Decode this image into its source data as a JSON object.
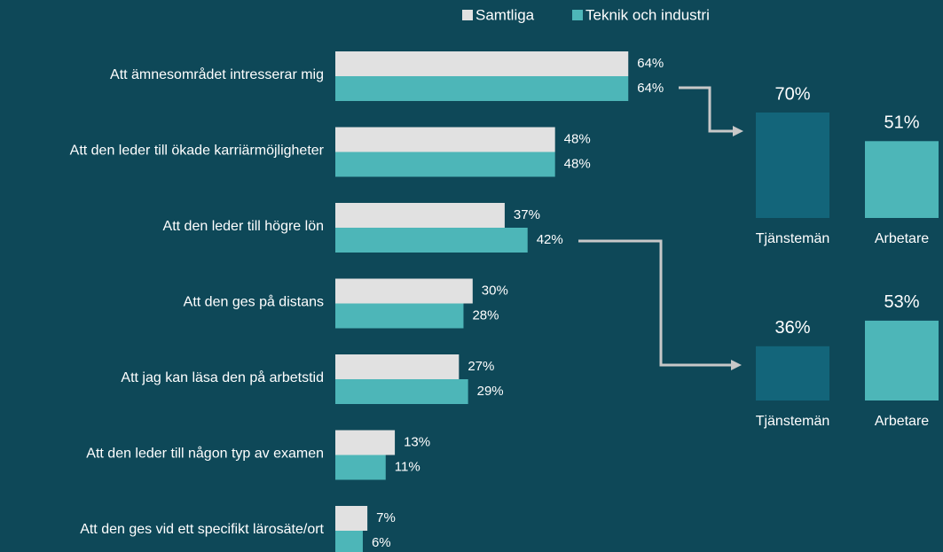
{
  "chart_data": [
    {
      "type": "bar",
      "orientation": "horizontal",
      "categories": [
        "Att ämnesområdet intresserar mig",
        "Att den leder till ökade karriärmöjligheter",
        "Att den leder till högre lön",
        "Att den ges på distans",
        "Att jag kan läsa den på arbetstid",
        "Att den leder till någon typ av examen",
        "Att den ges vid ett specifikt lärosäte/ort"
      ],
      "series": [
        {
          "name": "Samtliga",
          "color": "#e1e1e1",
          "values": [
            64,
            48,
            37,
            30,
            27,
            13,
            7
          ],
          "value_labels": [
            "64%",
            "48%",
            "37%",
            "30%",
            "27%",
            "13%",
            "7%"
          ]
        },
        {
          "name": "Teknik och industri",
          "color": "#4db6b8",
          "values": [
            64,
            48,
            42,
            28,
            29,
            11,
            6
          ],
          "value_labels": [
            "64%",
            "48%",
            "42%",
            "28%",
            "29%",
            "11%",
            "6%"
          ]
        }
      ]
    },
    {
      "type": "bar",
      "categories": [
        "Tjänstemän",
        "Arbetare"
      ],
      "values": [
        70,
        51
      ],
      "value_labels": [
        "70%",
        "51%"
      ],
      "colors": [
        "#13657a",
        "#4db6b8"
      ]
    },
    {
      "type": "bar",
      "categories": [
        "Tjänstemän",
        "Arbetare"
      ],
      "values": [
        36,
        53
      ],
      "value_labels": [
        "36%",
        "53%"
      ],
      "colors": [
        "#13657a",
        "#4db6b8"
      ]
    }
  ]
}
